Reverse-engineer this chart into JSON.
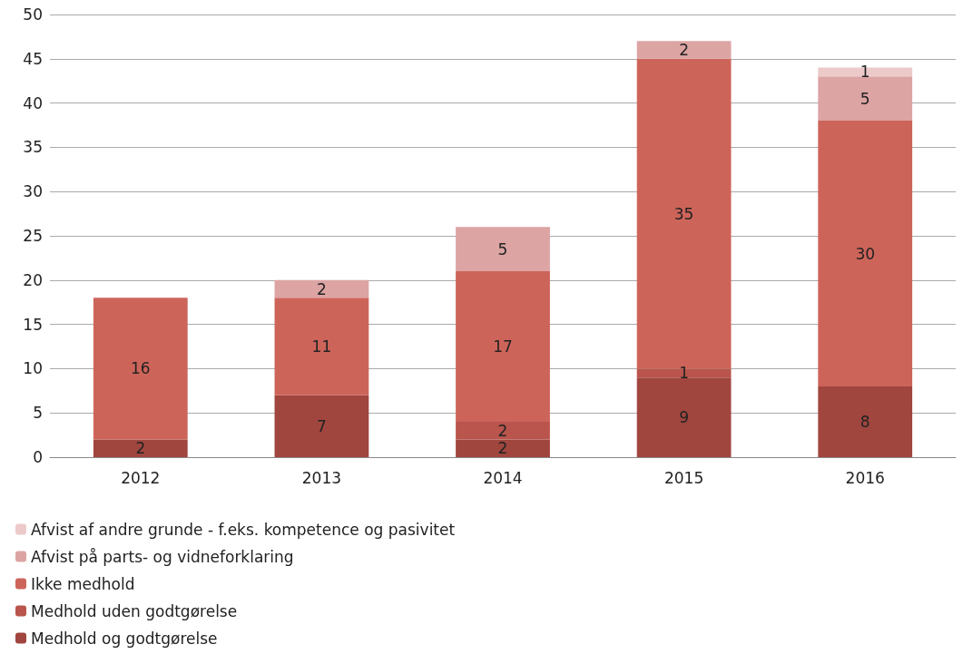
{
  "chart_data": {
    "type": "bar",
    "stacked": true,
    "categories": [
      "2012",
      "2013",
      "2014",
      "2015",
      "2016"
    ],
    "series": [
      {
        "name": "Medhold og godtgørelse",
        "color": "#a0463f",
        "values": [
          2,
          7,
          2,
          9,
          8
        ]
      },
      {
        "name": "Medhold uden godtgørelse",
        "color": "#b9554c",
        "values": [
          null,
          null,
          2,
          1,
          null
        ]
      },
      {
        "name": "Ikke medhold",
        "color": "#cd645a",
        "values": [
          16,
          11,
          17,
          35,
          30
        ]
      },
      {
        "name": "Afvist på parts- og vidneforklaring",
        "color": "#dca4a3",
        "values": [
          null,
          2,
          5,
          2,
          5
        ]
      },
      {
        "name": "Afvist af andre grunde - f.eks. kompetence og pasivitet",
        "color": "#eccaca",
        "values": [
          null,
          null,
          null,
          null,
          1
        ]
      }
    ],
    "ylim": [
      0,
      50
    ],
    "yticks": [
      0,
      5,
      10,
      15,
      20,
      25,
      30,
      35,
      40,
      45,
      50
    ],
    "grid": "y",
    "legend": "bottom",
    "data_labels": true
  }
}
